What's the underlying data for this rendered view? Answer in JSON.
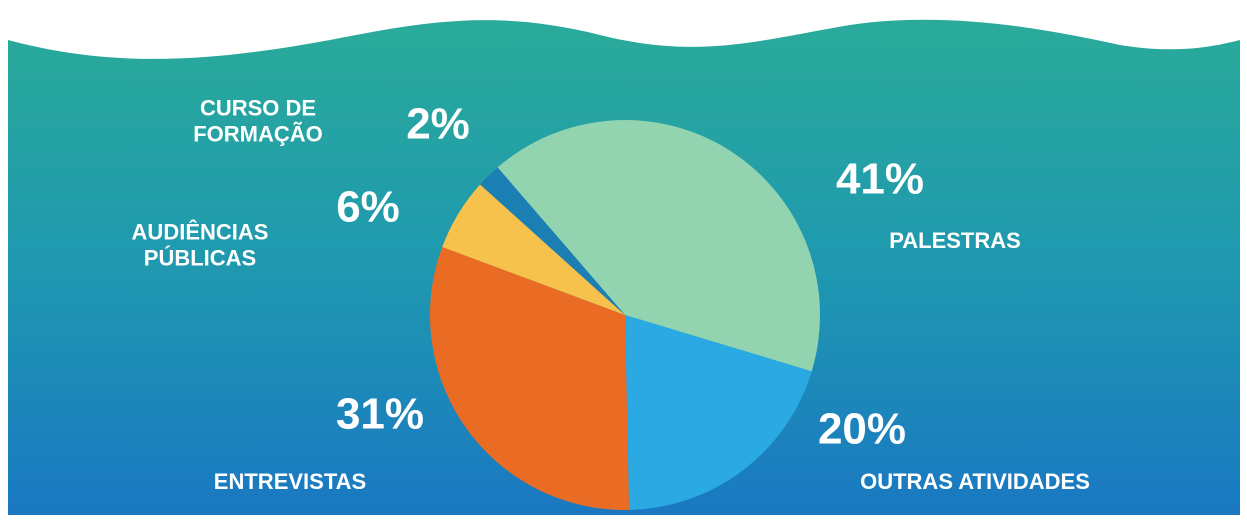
{
  "chart_data": {
    "type": "pie",
    "categories": [
      "PALESTRAS",
      "OUTRAS ATIVIDADES",
      "ENTREVISTAS",
      "AUDIÊNCIAS PÚBLICAS",
      "CURSO DE FORMAÇÃO"
    ],
    "values": [
      41,
      20,
      31,
      6,
      2
    ],
    "value_labels": [
      "41%",
      "20%",
      "31%",
      "6%",
      "2%"
    ],
    "colors": [
      "#92d4b0",
      "#2ba9e2",
      "#ea6b24",
      "#f7c24b",
      "#1b7fb3"
    ]
  }
}
